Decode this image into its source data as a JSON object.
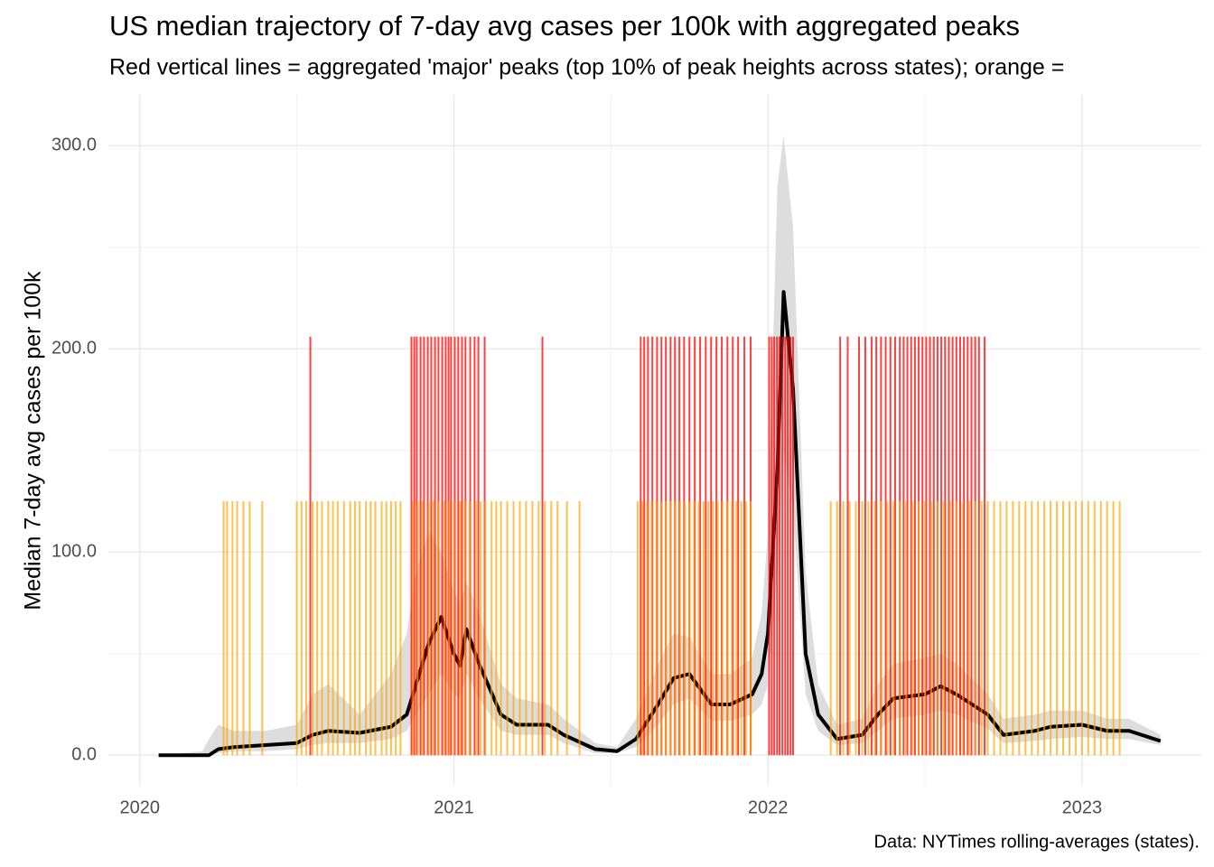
{
  "chart_data": {
    "type": "line",
    "title": "US median trajectory of 7-day avg cases per 100k with aggregated peaks",
    "subtitle": "Red vertical lines = aggregated 'major' peaks (top 10% of peak heights across states); orange =",
    "y_label": "Median 7-day avg cases per 100k",
    "caption": "Data: NYTimes rolling-averages (states).",
    "xlim": [
      2019.9,
      2023.38
    ],
    "xticks": [
      2020,
      2021,
      2022,
      2023
    ],
    "xminor": [
      2020.5,
      2021.5,
      2022.5
    ],
    "ylim": [
      -15,
      325
    ],
    "yticks": [
      {
        "value": 0,
        "label": "0.0"
      },
      {
        "value": 100,
        "label": "100.0"
      },
      {
        "value": 200,
        "label": "200.0"
      },
      {
        "value": 300,
        "label": "300.0"
      }
    ],
    "yminor": [
      50,
      150,
      250
    ],
    "grid": true,
    "x": [
      2020.06,
      2020.2,
      2020.22,
      2020.25,
      2020.3,
      2020.4,
      2020.5,
      2020.55,
      2020.6,
      2020.7,
      2020.8,
      2020.85,
      2020.88,
      2020.92,
      2020.96,
      2021.0,
      2021.02,
      2021.04,
      2021.08,
      2021.15,
      2021.2,
      2021.3,
      2021.35,
      2021.45,
      2021.52,
      2021.58,
      2021.65,
      2021.7,
      2021.75,
      2021.82,
      2021.88,
      2021.95,
      2021.98,
      2022.0,
      2022.03,
      2022.05,
      2022.08,
      2022.12,
      2022.16,
      2022.22,
      2022.3,
      2022.35,
      2022.4,
      2022.5,
      2022.55,
      2022.6,
      2022.7,
      2022.75,
      2022.85,
      2022.9,
      2023.0,
      2023.08,
      2023.15,
      2023.25
    ],
    "median": {
      "color": "#000000",
      "values": [
        0,
        0,
        0,
        3,
        4,
        5,
        6,
        10,
        12,
        11,
        14,
        20,
        35,
        55,
        68,
        50,
        44,
        62,
        45,
        20,
        15,
        15,
        10,
        3,
        2,
        8,
        25,
        38,
        40,
        25,
        25,
        30,
        40,
        60,
        140,
        228,
        180,
        50,
        20,
        8,
        10,
        20,
        28,
        30,
        34,
        30,
        20,
        10,
        12,
        14,
        15,
        12,
        12,
        7
      ]
    },
    "band_color": "#dddddd",
    "band_upper": [
      0,
      2,
      8,
      15,
      12,
      12,
      15,
      30,
      35,
      20,
      40,
      60,
      90,
      110,
      100,
      80,
      75,
      85,
      70,
      35,
      28,
      25,
      18,
      6,
      4,
      18,
      45,
      60,
      58,
      40,
      40,
      48,
      70,
      110,
      280,
      305,
      260,
      90,
      35,
      15,
      18,
      35,
      45,
      48,
      50,
      45,
      30,
      18,
      20,
      22,
      22,
      18,
      18,
      10
    ],
    "band_lower": [
      0,
      0,
      0,
      1,
      2,
      2,
      3,
      5,
      6,
      6,
      8,
      12,
      20,
      30,
      40,
      30,
      28,
      40,
      28,
      12,
      10,
      10,
      6,
      1,
      1,
      4,
      15,
      25,
      28,
      17,
      17,
      20,
      25,
      35,
      90,
      150,
      120,
      30,
      12,
      5,
      6,
      12,
      18,
      20,
      22,
      20,
      13,
      6,
      7,
      8,
      9,
      8,
      8,
      5
    ],
    "major_peaks": {
      "color": "#ff0000",
      "height": 206,
      "x": [
        2020.543,
        2020.865,
        2020.874,
        2020.882,
        2020.894,
        2020.905,
        2020.917,
        2020.928,
        2020.94,
        2020.951,
        2020.963,
        2020.974,
        2020.983,
        2020.991,
        2021.003,
        2021.014,
        2021.026,
        2021.037,
        2021.052,
        2021.066,
        2021.078,
        2021.098,
        2021.282,
        2021.595,
        2021.606,
        2021.618,
        2021.632,
        2021.647,
        2021.661,
        2021.675,
        2021.69,
        2021.704,
        2021.718,
        2021.733,
        2021.75,
        2021.767,
        2021.784,
        2021.802,
        2021.819,
        2021.836,
        2021.853,
        2021.871,
        2021.888,
        2021.905,
        2021.925,
        2021.945,
        2022.004,
        2022.012,
        2022.02,
        2022.029,
        2022.037,
        2022.046,
        2022.055,
        2022.063,
        2022.072,
        2022.08,
        2022.23,
        2022.254,
        2022.29,
        2022.31,
        2022.33,
        2022.345,
        2022.36,
        2022.375,
        2022.39,
        2022.405,
        2022.42,
        2022.432,
        2022.444,
        2022.456,
        2022.468,
        2022.48,
        2022.492,
        2022.504,
        2022.516,
        2022.528,
        2022.54,
        2022.552,
        2022.564,
        2022.576,
        2022.588,
        2022.6,
        2022.612,
        2022.624,
        2022.636,
        2022.648,
        2022.66,
        2022.672,
        2022.69
      ]
    },
    "minor_peaks": {
      "color": "#ffa500",
      "height": 125,
      "x": [
        2020.267,
        2020.278,
        2020.295,
        2020.31,
        2020.33,
        2020.35,
        2020.39,
        2020.5,
        2020.515,
        2020.53,
        2020.55,
        2020.565,
        2020.58,
        2020.6,
        2020.615,
        2020.63,
        2020.65,
        2020.67,
        2020.685,
        2020.7,
        2020.72,
        2020.735,
        2020.75,
        2020.77,
        2020.785,
        2020.8,
        2020.815,
        2020.83,
        2020.87,
        2020.885,
        2020.9,
        2020.92,
        2020.935,
        2020.95,
        2020.97,
        2020.985,
        2021.0,
        2021.02,
        2021.035,
        2021.05,
        2021.07,
        2021.085,
        2021.1,
        2021.12,
        2021.135,
        2021.15,
        2021.17,
        2021.19,
        2021.21,
        2021.23,
        2021.25,
        2021.27,
        2021.29,
        2021.31,
        2021.33,
        2021.36,
        2021.4,
        2021.585,
        2021.6,
        2021.615,
        2021.63,
        2021.645,
        2021.66,
        2021.675,
        2021.69,
        2021.705,
        2021.72,
        2021.735,
        2021.75,
        2021.765,
        2021.78,
        2021.795,
        2021.81,
        2021.825,
        2021.84,
        2021.855,
        2021.87,
        2021.885,
        2021.9,
        2021.915,
        2021.93,
        2021.945,
        2022.2,
        2022.22,
        2022.24,
        2022.26,
        2022.28,
        2022.3,
        2022.32,
        2022.34,
        2022.36,
        2022.38,
        2022.4,
        2022.42,
        2022.44,
        2022.46,
        2022.48,
        2022.5,
        2022.52,
        2022.54,
        2022.56,
        2022.58,
        2022.6,
        2022.62,
        2022.64,
        2022.66,
        2022.68,
        2022.7,
        2022.72,
        2022.74,
        2022.76,
        2022.78,
        2022.8,
        2022.82,
        2022.84,
        2022.86,
        2022.88,
        2022.9,
        2022.92,
        2022.94,
        2022.96,
        2022.98,
        2023.0,
        2023.02,
        2023.04,
        2023.06,
        2023.08,
        2023.1,
        2023.12
      ]
    }
  }
}
